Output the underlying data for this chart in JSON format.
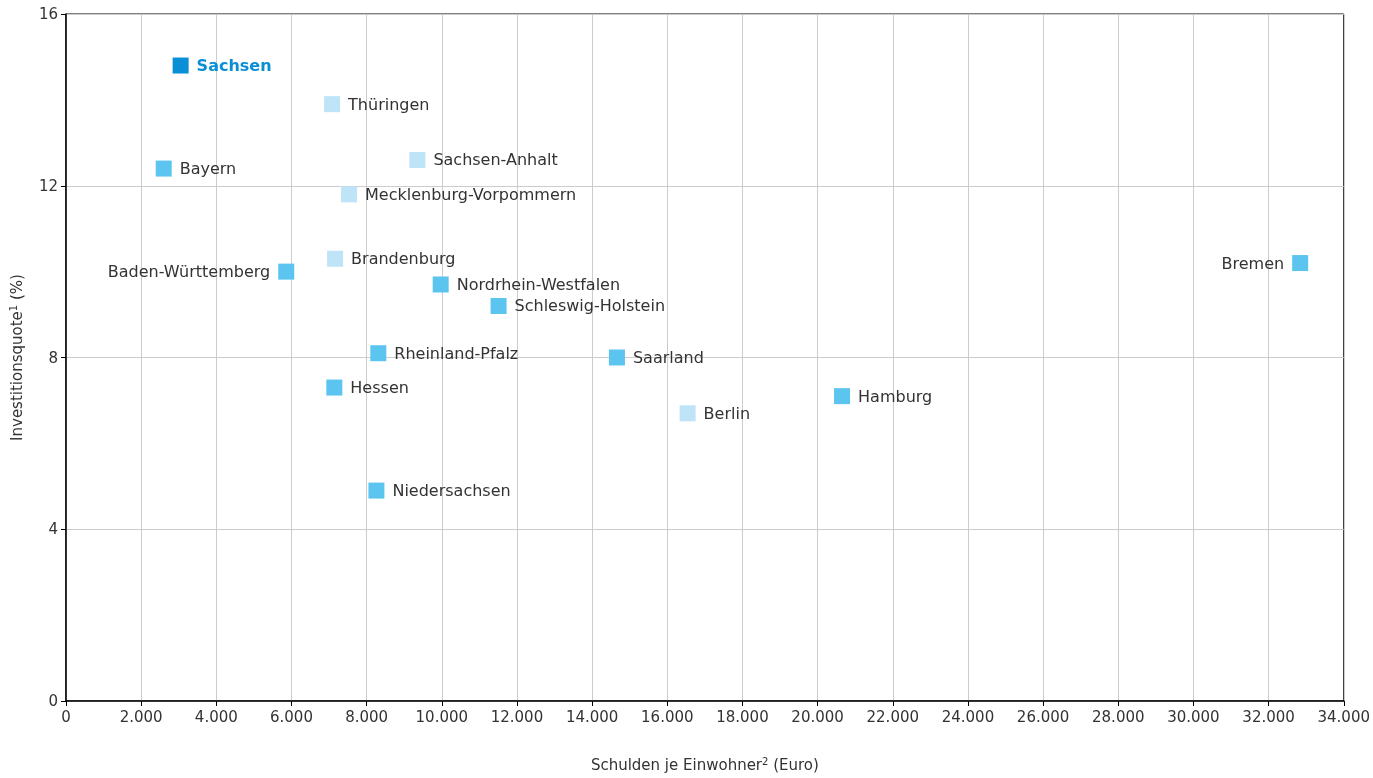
{
  "chart_data": {
    "type": "scatter",
    "xlabel": "Schulden je Einwohner$^{2}$ (Euro)",
    "ylabel": "Investitionsquote$^{1}$ (%)",
    "xlim": [
      0,
      34000
    ],
    "xticks": [
      0,
      {
        "value": 2000,
        "label": "2.000"
      },
      {
        "value": 4000,
        "label": "4.000"
      },
      {
        "value": 6000,
        "label": "6.000"
      },
      {
        "value": 8000,
        "label": "8.000"
      },
      {
        "value": 10000,
        "label": "10.000"
      },
      {
        "value": 12000,
        "label": "12.000"
      },
      {
        "value": 14000,
        "label": "14.000"
      },
      {
        "value": 16000,
        "label": "16.000"
      },
      {
        "value": 18000,
        "label": "18.000"
      },
      {
        "value": 20000,
        "label": "20.000"
      },
      {
        "value": 22000,
        "label": "22.000"
      },
      {
        "value": 24000,
        "label": "24.000"
      },
      {
        "value": 26000,
        "label": "26.000"
      },
      {
        "value": 28000,
        "label": "28.000"
      },
      {
        "value": 30000,
        "label": "30.000"
      },
      {
        "value": 32000,
        "label": "32.000"
      },
      {
        "value": 34000,
        "label": "34.000"
      }
    ],
    "ylim": [
      0,
      16
    ],
    "yticks": [
      0,
      4,
      8,
      12,
      16
    ],
    "grid": true,
    "legend": false,
    "marker": "square",
    "series": [
      {
        "name": "Sachsen",
        "color": "#0a8fd6",
        "x": [
          3050
        ],
        "values": [
          14.8
        ]
      },
      {
        "name": "Thüringen",
        "color": "#bfe3f7",
        "x": [
          7080
        ],
        "values": [
          13.9
        ]
      },
      {
        "name": "Bayern",
        "color": "#5bc5f0",
        "x": [
          2600
        ],
        "values": [
          12.4
        ]
      },
      {
        "name": "Sachsen-Anhalt",
        "color": "#bfe3f7",
        "x": [
          9350
        ],
        "values": [
          12.6
        ]
      },
      {
        "name": "Mecklenburg-Vorpommern",
        "color": "#bfe3f7",
        "x": [
          7530
        ],
        "values": [
          11.8
        ]
      },
      {
        "name": "Brandenburg",
        "color": "#bfe3f7",
        "x": [
          7160
        ],
        "values": [
          10.3
        ]
      },
      {
        "name": "Baden-Württemberg",
        "color": "#5bc5f0",
        "x": [
          5860
        ],
        "values": [
          10.0
        ]
      },
      {
        "name": "Nordrhein-Westfalen",
        "color": "#5bc5f0",
        "x": [
          9970
        ],
        "values": [
          9.7
        ]
      },
      {
        "name": "Schleswig-Holstein",
        "color": "#5bc5f0",
        "x": [
          11510
        ],
        "values": [
          9.2
        ]
      },
      {
        "name": "Rheinland-Pfalz",
        "color": "#5bc5f0",
        "x": [
          8310
        ],
        "values": [
          8.1
        ]
      },
      {
        "name": "Saarland",
        "color": "#5bc5f0",
        "x": [
          14660
        ],
        "values": [
          8.0
        ]
      },
      {
        "name": "Hessen",
        "color": "#5bc5f0",
        "x": [
          7140
        ],
        "values": [
          7.3
        ]
      },
      {
        "name": "Berlin",
        "color": "#bfe3f7",
        "x": [
          16540
        ],
        "values": [
          6.7
        ]
      },
      {
        "name": "Hamburg",
        "color": "#5bc5f0",
        "x": [
          20650
        ],
        "values": [
          7.1
        ]
      },
      {
        "name": "Niedersachsen",
        "color": "#5bc5f0",
        "x": [
          8260
        ],
        "values": [
          4.9
        ]
      },
      {
        "name": "Bremen",
        "color": "#5bc5f0",
        "x": [
          32840
        ],
        "values": [
          10.2
        ]
      }
    ]
  }
}
